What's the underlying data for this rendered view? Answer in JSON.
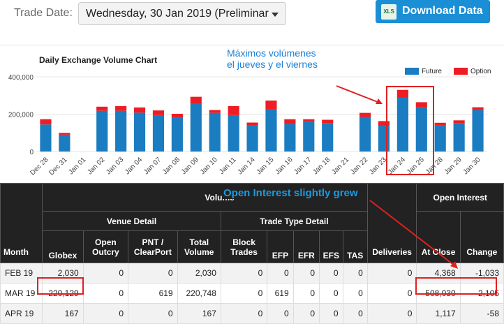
{
  "header": {
    "trade_date_label": "Trade Date:",
    "trade_date_value": "Wednesday, 30 Jan 2019 (Preliminar",
    "download_label": "Download Data",
    "download_icon_text": "XLS"
  },
  "annotations": {
    "chart_note_line1": "Máximos volúmenes",
    "chart_note_line2": "el jueves y el viernes",
    "table_note": "Open Interest slightly grew"
  },
  "colors": {
    "future": "#1a7cc1",
    "option": "#ee1c24",
    "annotation": "#e02020"
  },
  "chart_data": {
    "type": "bar",
    "title": "Daily Exchange Volume Chart",
    "categories": [
      "Dec 28",
      "Dec 31",
      "Jan 01",
      "Jan 02",
      "Jan 03",
      "Jan 04",
      "Jan 07",
      "Jan 08",
      "Jan 09",
      "Jan 10",
      "Jan 11",
      "Jan 14",
      "Jan 15",
      "Jan 16",
      "Jan 17",
      "Jan 18",
      "Jan 21",
      "Jan 22",
      "Jan 23",
      "Jan 24",
      "Jan 25",
      "Jan 28",
      "Jan 29",
      "Jan 30"
    ],
    "series": [
      {
        "name": "Future",
        "values": [
          145000,
          90000,
          0,
          218000,
          218000,
          208000,
          195000,
          180000,
          258000,
          207000,
          195000,
          140000,
          228000,
          148000,
          158000,
          152000,
          0,
          185000,
          138000,
          288000,
          236000,
          142000,
          152000,
          222000
        ]
      },
      {
        "name": "Option",
        "values": [
          28000,
          10000,
          0,
          22000,
          25000,
          28000,
          25000,
          22000,
          35000,
          15000,
          48000,
          15000,
          45000,
          25000,
          15000,
          18000,
          0,
          22000,
          25000,
          42000,
          28000,
          12000,
          15000,
          15000
        ]
      }
    ],
    "stacked": true,
    "yticks": [
      "0",
      "200,000",
      "400,000"
    ],
    "ylim": [
      0,
      400000
    ],
    "legend_position": "top-right"
  },
  "table": {
    "volume_header": "Volume",
    "venue_header": "Venue Detail",
    "trade_type_header": "Trade Type Detail",
    "open_interest_header": "Open Interest",
    "columns": [
      "Month",
      "Globex",
      "Open Outcry",
      "PNT / ClearPort",
      "Total Volume",
      "Block Trades",
      "EFP",
      "EFR",
      "EFS",
      "TAS",
      "Deliveries",
      "At Close",
      "Change"
    ],
    "rows": [
      [
        "FEB 19",
        "2,030",
        "0",
        "0",
        "2,030",
        "0",
        "0",
        "0",
        "0",
        "0",
        "0",
        "4,368",
        "-1,033"
      ],
      [
        "MAR 19",
        "220,129",
        "0",
        "619",
        "220,748",
        "0",
        "619",
        "0",
        "0",
        "0",
        "0",
        "508,030",
        "2,105"
      ],
      [
        "APR 19",
        "167",
        "0",
        "0",
        "167",
        "0",
        "0",
        "0",
        "0",
        "0",
        "0",
        "1,117",
        "-58"
      ]
    ]
  }
}
